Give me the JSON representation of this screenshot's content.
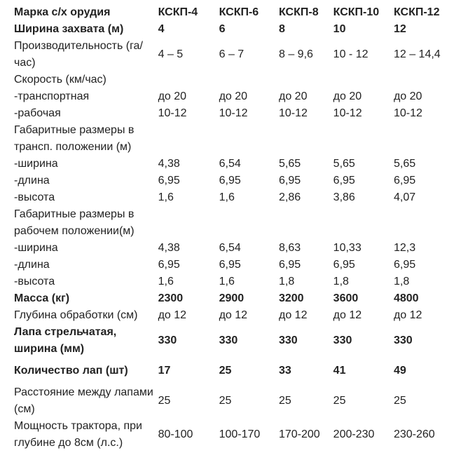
{
  "table": {
    "header_label": "Марка с/х орудия",
    "columns": [
      "КСКП-4",
      "КСКП-6",
      "КСКП-8",
      "КСКП-10",
      "КСКП-12"
    ],
    "rows": [
      {
        "label": "Ширина захвата (м)",
        "bold": true,
        "values": [
          "4",
          "6",
          "8",
          "10",
          "12"
        ]
      },
      {
        "label": "Производительность (га/час)",
        "bold": false,
        "values": [
          "4 – 5",
          "6 – 7",
          "8 – 9,6",
          "10 - 12",
          "12 – 14,4"
        ]
      },
      {
        "label": "Скорость (км/час)",
        "bold": false,
        "values": [
          "",
          "",
          "",
          "",
          ""
        ]
      },
      {
        "label": "-транспортная",
        "bold": false,
        "values": [
          "до 20",
          "до 20",
          "до 20",
          "до 20",
          "до 20"
        ]
      },
      {
        "label": "-рабочая",
        "bold": false,
        "values": [
          "10-12",
          "10-12",
          "10-12",
          "10-12",
          "10-12"
        ]
      },
      {
        "label": "Габаритные размеры в трансп. положении (м)",
        "bold": false,
        "values": [
          "",
          "",
          "",
          "",
          ""
        ]
      },
      {
        "label": "-ширина",
        "bold": false,
        "values": [
          "4,38",
          "6,54",
          "5,65",
          "5,65",
          "5,65"
        ]
      },
      {
        "label": "-длина",
        "bold": false,
        "values": [
          "6,95",
          "6,95",
          "6,95",
          "6,95",
          "6,95"
        ]
      },
      {
        "label": "-высота",
        "bold": false,
        "values": [
          "1,6",
          "1,6",
          "2,86",
          "3,86",
          "4,07"
        ]
      },
      {
        "label": "Габаритные размеры в рабочем положении(м)",
        "bold": false,
        "values": [
          "",
          "",
          "",
          "",
          ""
        ]
      },
      {
        "label": "-ширина",
        "bold": false,
        "values": [
          "4,38",
          "6,54",
          "8,63",
          "10,33",
          "12,3"
        ]
      },
      {
        "label": "-длина",
        "bold": false,
        "values": [
          "6,95",
          "6,95",
          "6,95",
          "6,95",
          "6,95"
        ]
      },
      {
        "label": "-высота",
        "bold": false,
        "values": [
          "1,6",
          "1,6",
          "1,8",
          "1,8",
          "1,8"
        ]
      },
      {
        "label": "Масса (кг)",
        "bold": true,
        "values": [
          "2300",
          "2900",
          "3200",
          "3600",
          "4800"
        ]
      },
      {
        "label": "Глубина обработки (см)",
        "bold": false,
        "values": [
          "до 12",
          "до 12",
          "до 12",
          "до 12",
          "до 12"
        ]
      },
      {
        "label": "Лапа стрельчатая, ширина (мм)",
        "bold": true,
        "values": [
          "330",
          "330",
          "330",
          "330",
          "330"
        ]
      },
      {
        "label": "Количество лап (шт)",
        "bold": true,
        "values": [
          "17",
          "25",
          "33",
          "41",
          "49"
        ]
      },
      {
        "label": "Расстояние между лапами (см)",
        "bold": false,
        "values": [
          "25",
          "25",
          "25",
          "25",
          "25"
        ]
      },
      {
        "label": "Мощность трактора, при глубине до 8см (л.с.)",
        "bold": false,
        "values": [
          "80-100",
          "100-170",
          "170-200",
          "200-230",
          "230-260"
        ]
      }
    ],
    "text_color": "#222222",
    "background_color": "#ffffff"
  }
}
